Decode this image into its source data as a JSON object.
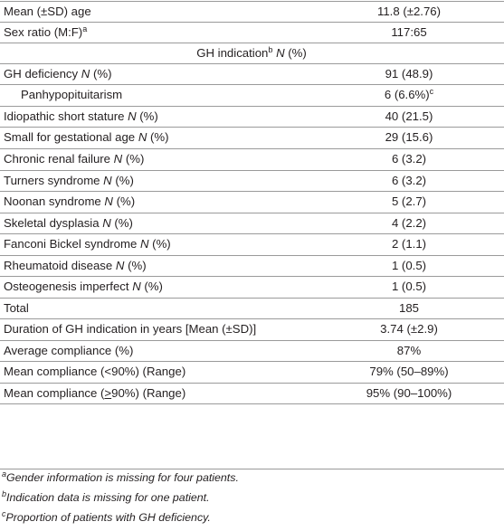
{
  "table": {
    "rows": [
      {
        "label": "Mean (±SD) age",
        "italic": "",
        "value": "11.8 (±2.76)"
      },
      {
        "label": "Sex ratio (M:F)",
        "sup": "a",
        "italic": "",
        "value": "117:65"
      },
      {
        "section": true,
        "label": "GH indication",
        "sup": "b",
        "italic": " N",
        "tail": " (%)"
      },
      {
        "label": "GH deficiency",
        "italic": " N",
        "tail": " (%)",
        "value": "91 (48.9)"
      },
      {
        "label": "Panhypopituitarism",
        "indent": true,
        "italic": "",
        "value": "6 (6.6%)",
        "value_sup": "c"
      },
      {
        "label": "Idiopathic short stature",
        "italic": " N",
        "tail": " (%)",
        "value": "40 (21.5)"
      },
      {
        "label": "Small for gestational age",
        "italic": " N",
        "tail": " (%)",
        "value": "29 (15.6)"
      },
      {
        "label": "Chronic renal failure",
        "italic": " N",
        "tail": " (%)",
        "value": "6 (3.2)"
      },
      {
        "label": "Turners syndrome",
        "italic": " N",
        "tail": " (%)",
        "value": "6 (3.2)"
      },
      {
        "label": "Noonan syndrome",
        "italic": " N",
        "tail": " (%)",
        "value": "5 (2.7)"
      },
      {
        "label": "Skeletal dysplasia",
        "italic": " N",
        "tail": " (%)",
        "value": "4 (2.2)"
      },
      {
        "label": "Fanconi Bickel syndrome",
        "italic": " N",
        "tail": " (%)",
        "value": "2 (1.1)"
      },
      {
        "label": "Rheumatoid disease",
        "italic": " N",
        "tail": " (%)",
        "value": "1 (0.5)"
      },
      {
        "label": "Osteogenesis imperfect",
        "italic": " N",
        "tail": " (%)",
        "value": "1 (0.5)"
      },
      {
        "label": "Total",
        "italic": "",
        "value": "185"
      },
      {
        "label": "Duration of GH indication in years [Mean (±SD)]",
        "italic": "",
        "value": "3.74 (±2.9)"
      },
      {
        "label": "Average compliance (%)",
        "italic": "",
        "value": "87%"
      },
      {
        "label": "Mean compliance (<90%) (Range)",
        "italic": "",
        "value": "79% (50–89%)"
      },
      {
        "label": "Mean compliance (",
        "underline": ">",
        "tail": "90%) (Range)",
        "italic": "",
        "value": "95% (90–100%)"
      }
    ],
    "footnotes": [
      {
        "mark": "a",
        "text": "Gender information is missing for four patients."
      },
      {
        "mark": "b",
        "text": "Indication data is missing for one patient."
      },
      {
        "mark": "c",
        "text": "Proportion of patients with GH deficiency."
      }
    ]
  }
}
